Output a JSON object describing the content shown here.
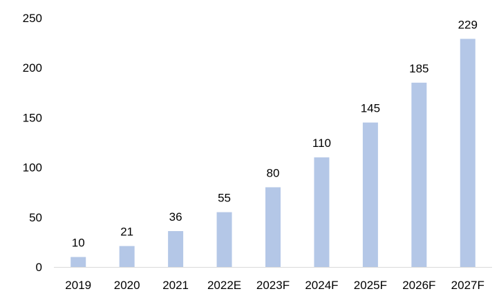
{
  "chart_data": {
    "type": "bar",
    "categories": [
      "2019",
      "2020",
      "2021",
      "2022E",
      "2023F",
      "2024F",
      "2025F",
      "2026F",
      "2027F"
    ],
    "values": [
      10,
      21,
      36,
      55,
      80,
      110,
      145,
      185,
      229
    ],
    "data_labels": [
      "10",
      "21",
      "36",
      "55",
      "80",
      "110",
      "145",
      "185",
      "229"
    ],
    "y_ticks": [
      0,
      50,
      100,
      150,
      200,
      250
    ],
    "y_tick_labels": [
      "0",
      "50",
      "100",
      "150",
      "200",
      "250"
    ],
    "ylim": [
      0,
      250
    ],
    "title": "",
    "xlabel": "",
    "ylabel": "",
    "grid": false,
    "legend": "none",
    "colors": {
      "bar": "#b4c7e7",
      "axis": "#d9d9d9",
      "text": "#000000"
    }
  }
}
